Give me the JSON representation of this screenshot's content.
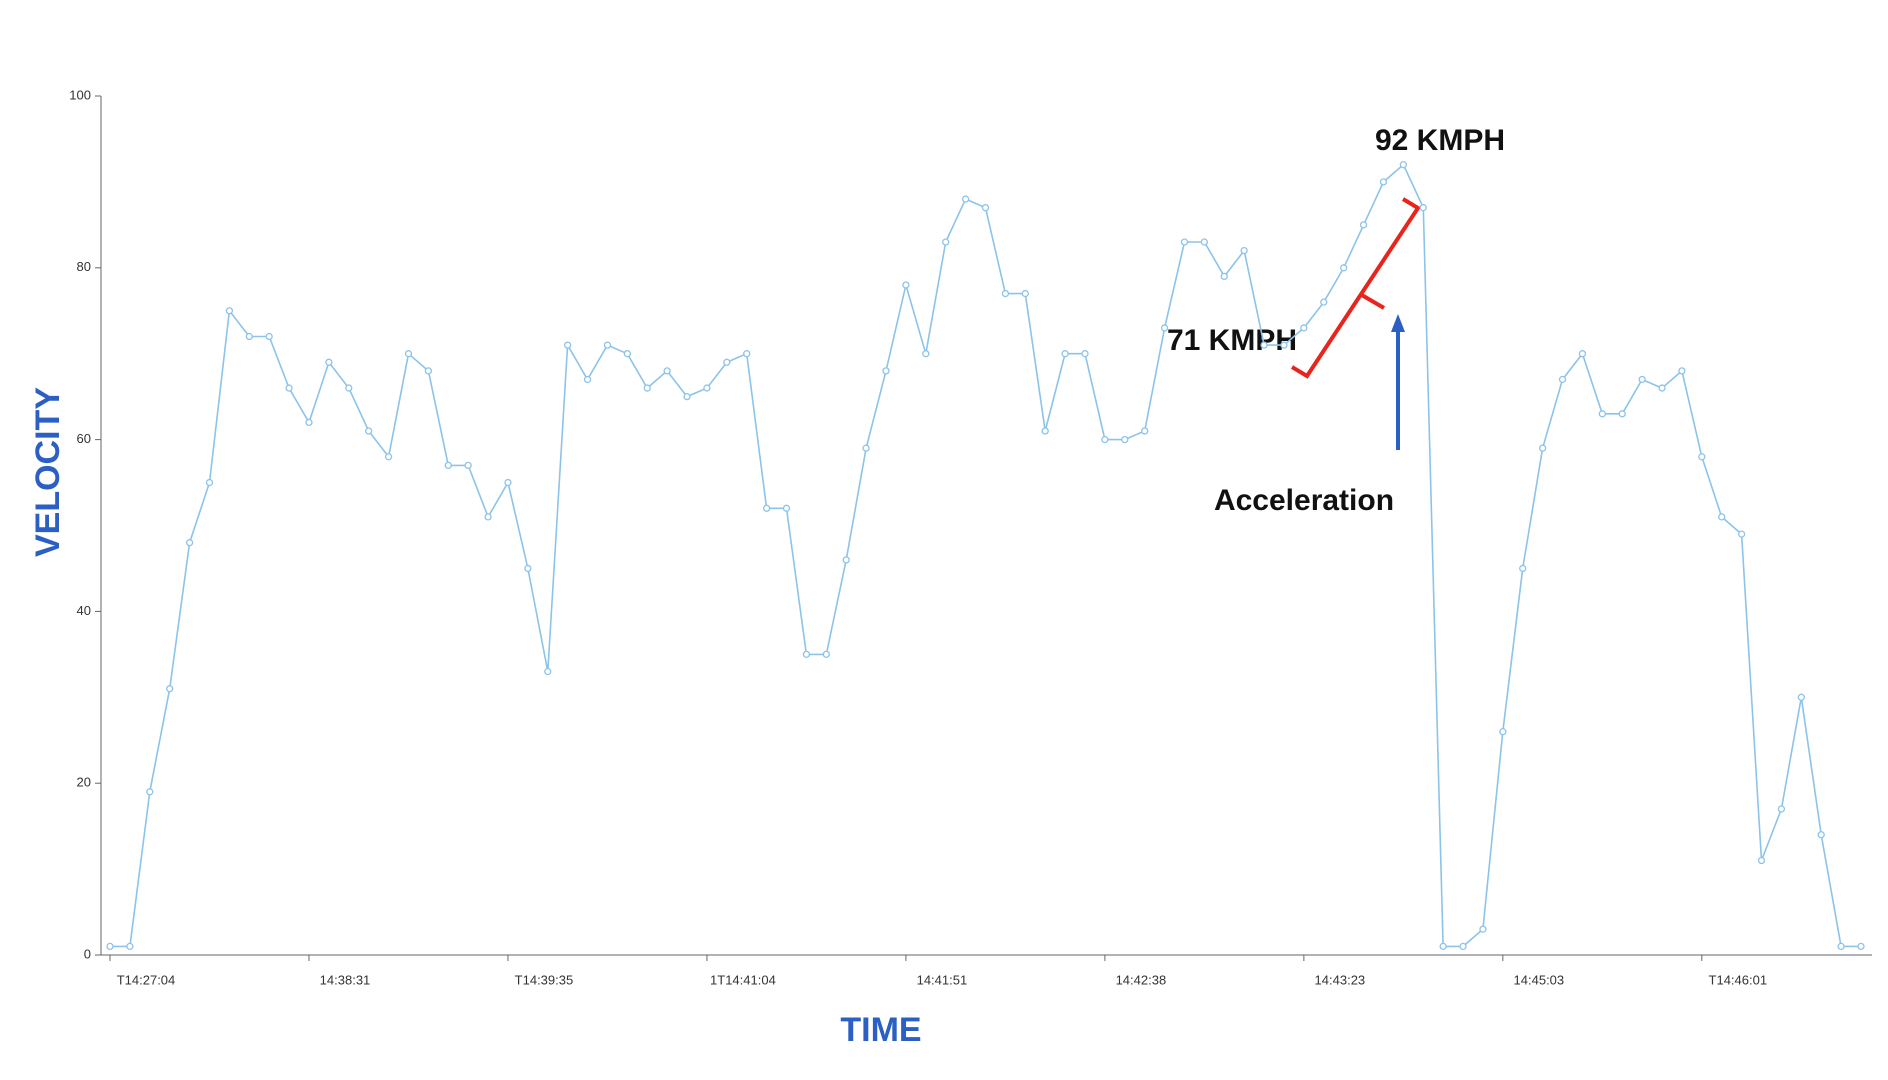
{
  "chart_data": {
    "type": "line",
    "x_label": "TIME",
    "y_label": "VELOCITY",
    "annotations": [
      "92 KMPH",
      "71 KMPH",
      "Acceleration"
    ],
    "categories": [
      "T14:27:04",
      null,
      null,
      null,
      null,
      null,
      null,
      null,
      null,
      null,
      "14:38:31",
      null,
      null,
      null,
      null,
      null,
      null,
      null,
      null,
      null,
      "T14:39:35",
      null,
      null,
      null,
      null,
      null,
      null,
      null,
      null,
      null,
      "1T14:41:04",
      null,
      null,
      null,
      null,
      null,
      null,
      null,
      null,
      null,
      "14:41:51",
      null,
      null,
      null,
      null,
      null,
      null,
      null,
      null,
      null,
      "14:42:38",
      null,
      null,
      null,
      null,
      null,
      null,
      null,
      null,
      null,
      "14:43:23",
      null,
      null,
      null,
      null,
      null,
      null,
      null,
      null,
      null,
      "14:45:03",
      null,
      null,
      null,
      null,
      null,
      null,
      null,
      null,
      null,
      "T14:46:01",
      null,
      null,
      null,
      null,
      null,
      null,
      null,
      null
    ],
    "series": [
      {
        "name": "Velocity",
        "color": "#8cc3ea",
        "values": [
          1,
          1,
          19,
          31,
          48,
          55,
          75,
          72,
          72,
          66,
          62,
          69,
          66,
          61,
          58,
          70,
          68,
          57,
          57,
          51,
          55,
          45,
          33,
          71,
          67,
          71,
          70,
          66,
          68,
          65,
          66,
          69,
          70,
          52,
          52,
          35,
          35,
          46,
          59,
          68,
          78,
          70,
          83,
          88,
          87,
          77,
          77,
          61,
          70,
          70,
          60,
          60,
          61,
          73,
          83,
          83,
          79,
          82,
          71,
          71,
          73,
          76,
          80,
          85,
          90,
          92,
          87,
          1,
          1,
          3,
          26,
          45,
          59,
          67,
          70,
          63,
          63,
          67,
          66,
          68,
          58,
          51,
          49,
          11,
          17,
          30,
          14,
          1,
          1
        ]
      }
    ],
    "ylim": [
      0,
      100
    ],
    "yticks": [
      0,
      20,
      40,
      60,
      80,
      100
    ]
  }
}
